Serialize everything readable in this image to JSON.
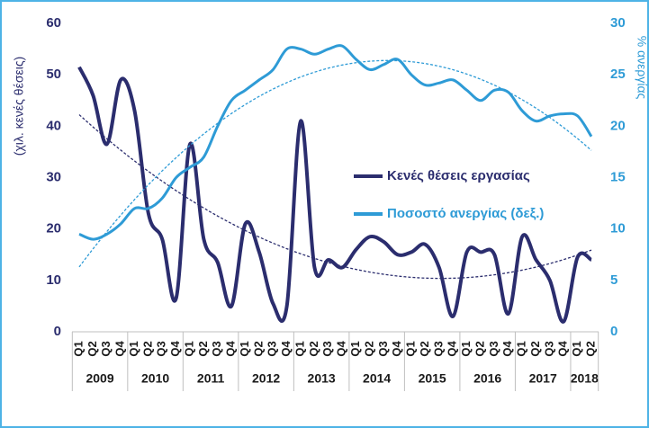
{
  "chart_data": {
    "type": "line",
    "y_label": "(χιλ. κενές θέσεις)",
    "y2_label": "% ανεργίας",
    "categories": [
      "Q1",
      "Q2",
      "Q3",
      "Q4",
      "Q1",
      "Q2",
      "Q3",
      "Q4",
      "Q1",
      "Q2",
      "Q3",
      "Q4",
      "Q1",
      "Q2",
      "Q3",
      "Q4",
      "Q1",
      "Q2",
      "Q3",
      "Q4",
      "Q1",
      "Q2",
      "Q3",
      "Q4",
      "Q1",
      "Q2",
      "Q3",
      "Q4",
      "Q1",
      "Q2",
      "Q3",
      "Q4",
      "Q1",
      "Q2",
      "Q3",
      "Q4",
      "Q1",
      "Q2"
    ],
    "years": [
      "2009",
      "2010",
      "2011",
      "2012",
      "2013",
      "2014",
      "2015",
      "2016",
      "2017",
      "2018"
    ],
    "series": [
      {
        "name": "Κενές θέσεις εργασίας",
        "color": "#2b2d6e",
        "trendline": true,
        "values": [
          51.5,
          46,
          36.5,
          49,
          43,
          23,
          18,
          6.5,
          36.5,
          18,
          13.5,
          5,
          21,
          15.5,
          5.5,
          5,
          41,
          12.5,
          14,
          12.5,
          16,
          18.5,
          17.5,
          15,
          15.5,
          17,
          12.5,
          3,
          15.5,
          15.5,
          15,
          3.5,
          18.5,
          14,
          10,
          2,
          14.5,
          14
        ]
      },
      {
        "name": "Ποσοστό ανεργίας (δεξ.)",
        "color": "#2e9bd6",
        "axis": "y2",
        "trendline": true,
        "values": [
          9.5,
          9,
          9.5,
          10.5,
          12,
          12,
          13,
          15,
          16,
          17,
          20,
          22.5,
          23.5,
          24.5,
          25.5,
          27.5,
          27.5,
          27,
          27.5,
          27.8,
          26.5,
          25.5,
          26,
          26.5,
          25,
          24,
          24.2,
          24.5,
          23.5,
          22.5,
          23.5,
          23.3,
          21.5,
          20.5,
          21,
          21.2,
          21,
          19
        ]
      }
    ],
    "ylim": [
      0,
      60
    ],
    "yticks": [
      0,
      10,
      20,
      30,
      40,
      50,
      60
    ],
    "y2lim": [
      0,
      30
    ],
    "y2ticks": [
      0,
      5,
      10,
      15,
      20,
      25,
      30
    ]
  }
}
